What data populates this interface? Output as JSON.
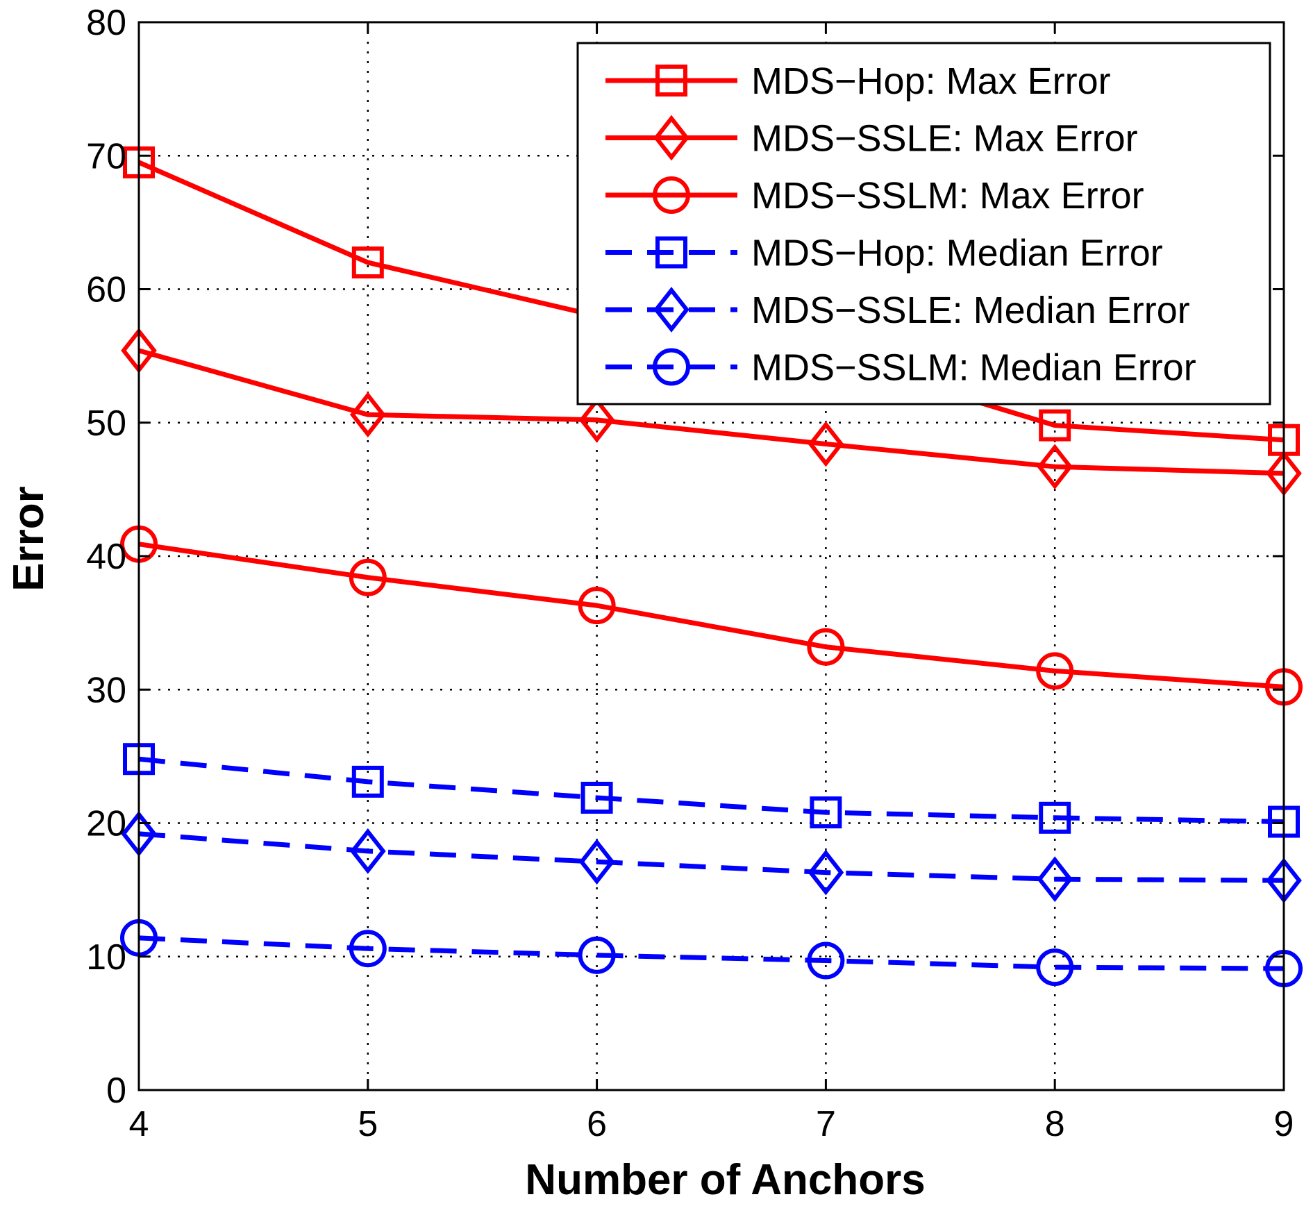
{
  "chart_data": {
    "type": "line",
    "title": "",
    "xlabel": "Number of Anchors",
    "ylabel": "Error",
    "x": [
      4,
      5,
      6,
      7,
      8,
      9
    ],
    "xlim": [
      4,
      9
    ],
    "ylim": [
      0,
      80
    ],
    "xticks": [
      4,
      5,
      6,
      7,
      8,
      9
    ],
    "yticks": [
      0,
      10,
      20,
      30,
      40,
      50,
      60,
      70,
      80
    ],
    "grid": true,
    "legend_position": "top-right",
    "series": [
      {
        "name": "MDS−Hop: Max Error",
        "values": [
          69.5,
          62.0,
          58.0,
          55.0,
          49.8,
          48.7
        ],
        "color": "#ff0000",
        "dash": "solid",
        "marker": "square"
      },
      {
        "name": "MDS−SSLE: Max Error",
        "values": [
          55.4,
          50.6,
          50.2,
          48.4,
          46.7,
          46.2
        ],
        "color": "#ff0000",
        "dash": "solid",
        "marker": "diamond"
      },
      {
        "name": "MDS−SSLM: Max Error",
        "values": [
          40.9,
          38.4,
          36.3,
          33.2,
          31.4,
          30.2
        ],
        "color": "#ff0000",
        "dash": "solid",
        "marker": "circle"
      },
      {
        "name": "MDS−Hop: Median Error",
        "values": [
          24.8,
          23.1,
          21.9,
          20.8,
          20.4,
          20.1
        ],
        "color": "#0000ff",
        "dash": "dashed",
        "marker": "square"
      },
      {
        "name": "MDS−SSLE: Median Error",
        "values": [
          19.2,
          17.9,
          17.1,
          16.3,
          15.8,
          15.7
        ],
        "color": "#0000ff",
        "dash": "dashed",
        "marker": "diamond"
      },
      {
        "name": "MDS−SSLM: Median Error",
        "values": [
          11.4,
          10.6,
          10.1,
          9.7,
          9.2,
          9.1
        ],
        "color": "#0000ff",
        "dash": "dashed",
        "marker": "circle"
      }
    ]
  }
}
